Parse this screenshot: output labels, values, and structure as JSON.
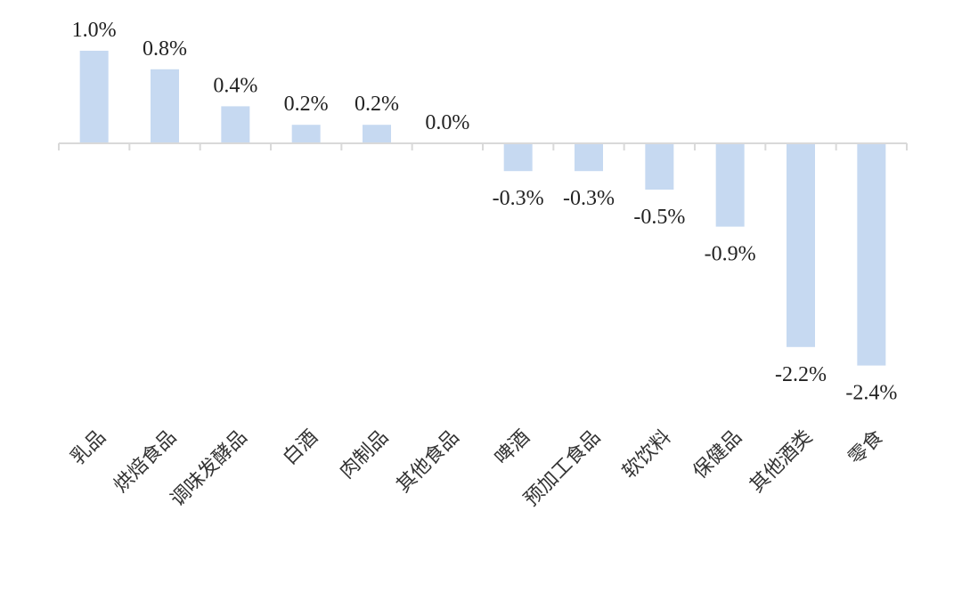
{
  "chart_data": {
    "type": "bar",
    "title": "",
    "xlabel": "",
    "ylabel": "",
    "ylim": [
      -2.4,
      1.0
    ],
    "grid": false,
    "legend": "none",
    "categories": [
      "乳品",
      "烘焙食品",
      "调味发酵品",
      "白酒",
      "肉制品",
      "其他食品",
      "啤酒",
      "预加工食品",
      "软饮料",
      "保健品",
      "其他酒类",
      "零食"
    ],
    "values": [
      1.0,
      0.8,
      0.4,
      0.2,
      0.2,
      0.0,
      -0.3,
      -0.3,
      -0.5,
      -0.9,
      -2.2,
      -2.4
    ],
    "value_labels": [
      "1.0%",
      "0.8%",
      "0.4%",
      "0.2%",
      "0.2%",
      "0.0%",
      "-0.3%",
      "-0.3%",
      "-0.5%",
      "-0.9%",
      "-2.2%",
      "-2.4%"
    ],
    "bar_color": "#c6d9f1",
    "axis_color": "#d9d9d9"
  }
}
